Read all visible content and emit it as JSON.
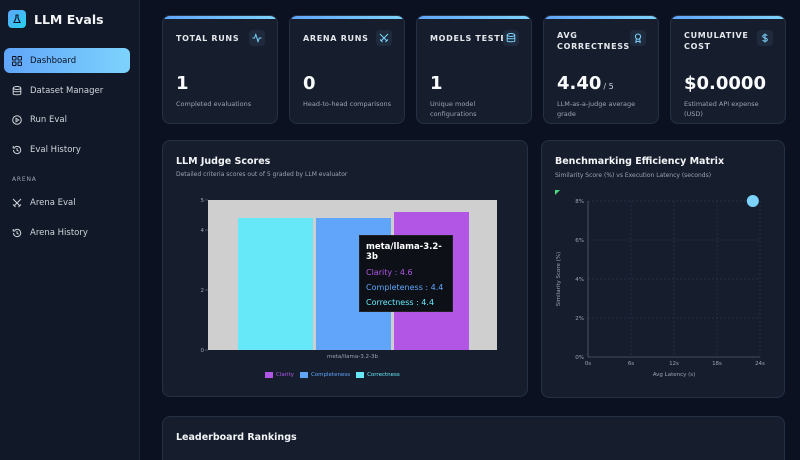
{
  "sidebar": {
    "brand_icon": "flask-icon",
    "brand_title": "LLM Evals",
    "items": [
      {
        "label": "Dashboard",
        "icon": "grid-icon",
        "active": true
      },
      {
        "label": "Dataset Manager",
        "icon": "database-icon",
        "active": false
      },
      {
        "label": "Run Eval",
        "icon": "play-icon",
        "active": false
      },
      {
        "label": "Eval History",
        "icon": "history-icon",
        "active": false
      }
    ],
    "section_label": "ARENA",
    "arena_items": [
      {
        "label": "Arena Eval",
        "icon": "swords-icon"
      },
      {
        "label": "Arena History",
        "icon": "history-icon"
      }
    ]
  },
  "stats": [
    {
      "label": "TOTAL RUNS",
      "value": "1",
      "suffix": "",
      "desc": "Completed evaluations",
      "icon": "activity-icon"
    },
    {
      "label": "ARENA RUNS",
      "value": "0",
      "suffix": "",
      "desc": "Head-to-head comparisons",
      "icon": "swords-icon"
    },
    {
      "label": "MODELS TESTED",
      "value": "1",
      "suffix": "",
      "desc": "Unique model configurations",
      "icon": "database-icon"
    },
    {
      "label": "AVG CORRECTNESS",
      "value": "4.40",
      "suffix": "/ 5",
      "desc": "LLM-as-a-judge average grade",
      "icon": "award-icon"
    },
    {
      "label": "CUMULATIVE COST",
      "value": "$0.0000",
      "suffix": "",
      "desc": "Estimated API expense (USD)",
      "icon": "dollar-icon"
    }
  ],
  "judge_panel": {
    "title": "LLM Judge Scores",
    "subtitle": "Detailed criteria scores out of 5 graded by LLM evaluator",
    "tooltip": {
      "title": "meta/llama-3.2-3b",
      "rows": [
        "Clarity : 4.6",
        "Completeness : 4.4",
        "Correctness : 4.4"
      ]
    }
  },
  "efficiency_panel": {
    "title": "Benchmarking Efficiency Matrix",
    "subtitle": "Similarity Score (%) vs Execution Latency (seconds)"
  },
  "leaderboard": {
    "title": "Leaderboard Rankings"
  },
  "colors": {
    "clarity": "#b256e6",
    "completeness": "#60a5fa",
    "correctness": "#67e8f9",
    "accent": "#7dd3fc"
  },
  "chart_data": [
    {
      "type": "bar",
      "categories": [
        "meta/llama-3.2-3b"
      ],
      "series": [
        {
          "name": "Correctness",
          "values": [
            4.4
          ]
        },
        {
          "name": "Completeness",
          "values": [
            4.4
          ]
        },
        {
          "name": "Clarity",
          "values": [
            4.6
          ]
        }
      ],
      "yticks": [
        "0",
        "2",
        "4",
        "5"
      ],
      "ylim": [
        0,
        5
      ],
      "legend": [
        "Clarity",
        "Completeness",
        "Correctness"
      ],
      "legend_position": "bottom"
    },
    {
      "type": "scatter",
      "points": [
        {
          "x": 23,
          "y": 8
        }
      ],
      "xlabel": "Avg Latency (s)",
      "ylabel": "Similarity Score (%)",
      "xticks": [
        "0s",
        "6s",
        "12s",
        "18s",
        "24s"
      ],
      "yticks": [
        "0%",
        "2%",
        "4%",
        "6%",
        "8%"
      ],
      "xlim": [
        0,
        24
      ],
      "ylim": [
        0,
        8
      ],
      "grid": true
    }
  ]
}
